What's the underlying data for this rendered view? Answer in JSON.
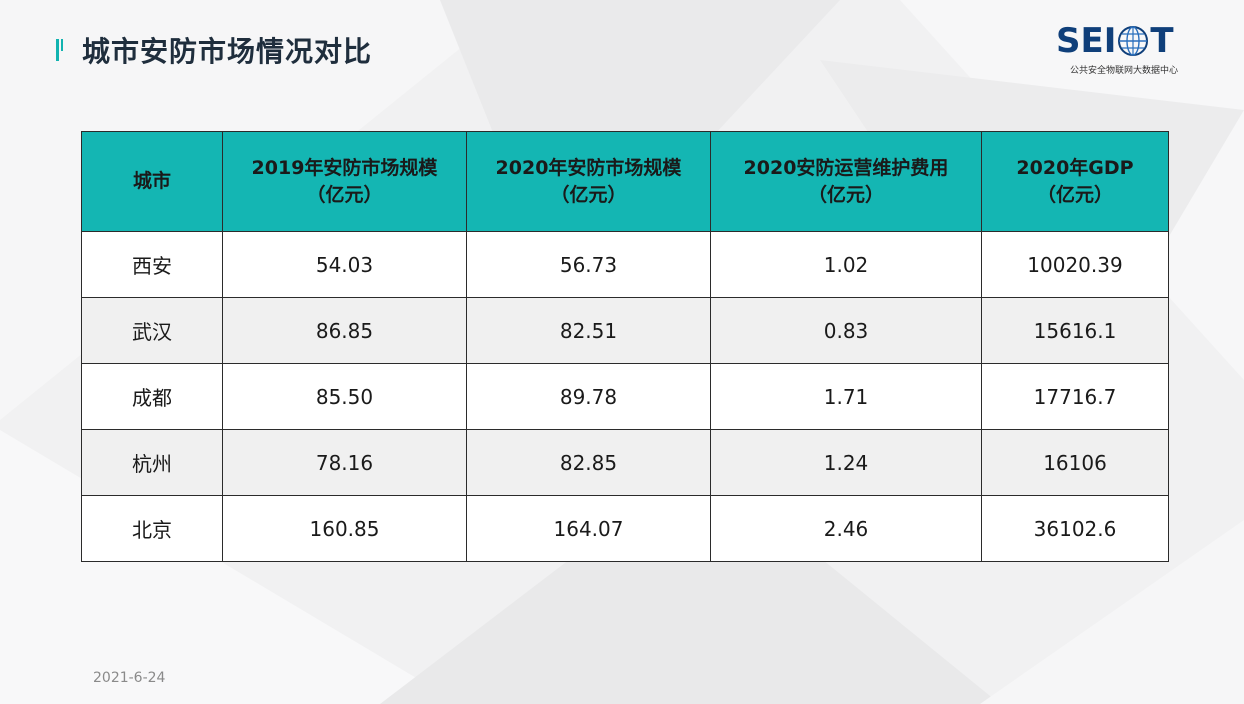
{
  "page": {
    "title": "城市安防市场情况对比",
    "date": "2021-6-24"
  },
  "logo": {
    "letters": [
      "S",
      "E",
      "I",
      "T"
    ],
    "subtitle": "公共安全物联网大数据中心",
    "color": "#0f3f7a"
  },
  "theme": {
    "accent": "#14b6b3",
    "text": "#1f2e3d"
  },
  "table": {
    "headers": [
      {
        "line1": "城市",
        "line2": ""
      },
      {
        "line1": "2019年安防市场规模",
        "line2": "（亿元）"
      },
      {
        "line1": "2020年安防市场规模",
        "line2": "（亿元）"
      },
      {
        "line1": "2020安防运营维护费用",
        "line2": "（亿元）"
      },
      {
        "line1": "2020年GDP",
        "line2": "（亿元）"
      }
    ],
    "rows": [
      [
        "西安",
        "54.03",
        "56.73",
        "1.02",
        "10020.39"
      ],
      [
        "武汉",
        "86.85",
        "82.51",
        "0.83",
        "15616.1"
      ],
      [
        "成都",
        "85.50",
        "89.78",
        "1.71",
        "17716.7"
      ],
      [
        "杭州",
        "78.16",
        "82.85",
        "1.24",
        "16106"
      ],
      [
        "北京",
        "160.85",
        "164.07",
        "2.46",
        "36102.6"
      ]
    ]
  }
}
